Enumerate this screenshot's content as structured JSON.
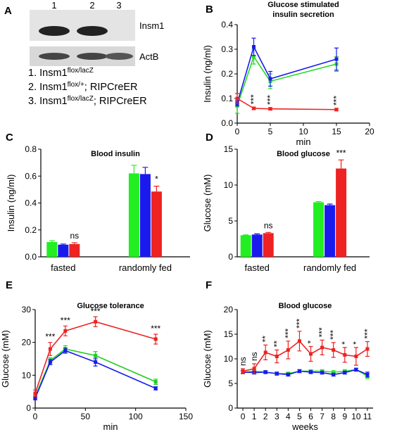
{
  "blot": {
    "label": "A",
    "lanes": [
      "1",
      "2",
      "3"
    ],
    "lane_colors": [
      "#22cc22",
      "#2222dd",
      "#ee2222"
    ],
    "bands": [
      "Insm1",
      "ActB"
    ]
  },
  "legend": [
    {
      "text": "1. Insm1",
      "sup": "flox/lacZ",
      "color": "#22cc22"
    },
    {
      "text": "2. Insm1",
      "sup": "flox/+",
      "rest": "; RIPCreER",
      "color": "#2222dd"
    },
    {
      "text": "3. Insm1",
      "sup": "flox/lacZ",
      "rest": "; RIPCreER",
      "color": "#ee2222"
    }
  ],
  "chart_data": [
    {
      "type": "line",
      "label": "B",
      "title": [
        "Glucose stimulated",
        "insulin secretion"
      ],
      "xlabel": "min",
      "ylabel": "Insulin (ng/ml)",
      "x": [
        0,
        2.5,
        5,
        15
      ],
      "xlim": [
        0,
        20
      ],
      "xticks": [
        0,
        5,
        10,
        15,
        20
      ],
      "ylim": [
        0,
        0.4
      ],
      "yticks": [
        {
          "value": 0,
          "label": "0.0"
        },
        {
          "value": 0.1,
          "label": "0.1"
        },
        {
          "value": 0.2,
          "label": "0.2"
        },
        {
          "value": 0.3,
          "label": "0.3"
        },
        {
          "value": 0.4,
          "label": "0.4"
        }
      ],
      "annotation_orientation": "vertical",
      "series": [
        {
          "color": "#22dd22",
          "values": [
            0.07,
            0.27,
            0.17,
            0.24
          ],
          "errors": [
            0.03,
            0.03,
            0.03,
            0.03
          ]
        },
        {
          "color": "#1a1aee",
          "values": [
            0.08,
            0.31,
            0.18,
            0.26
          ],
          "errors": [
            0.01,
            0.035,
            0.03,
            0.045
          ]
        },
        {
          "color": "#ee2222",
          "values": [
            0.1,
            0.06,
            0.058,
            0.055
          ],
          "errors": [
            0.02,
            0.005,
            0.005,
            0.005
          ],
          "annotations": [
            null,
            "***",
            "***",
            "***"
          ]
        }
      ]
    },
    {
      "type": "bar",
      "label": "C",
      "title": "Blood insulin",
      "ylabel": "Insulin (ng/ml)",
      "categories": [
        "fasted",
        "randomly fed"
      ],
      "ylim": [
        0,
        0.8
      ],
      "yticks": [
        {
          "value": 0,
          "label": "0.0"
        },
        {
          "value": 0.2,
          "label": "0.2"
        },
        {
          "value": 0.4,
          "label": "0.4"
        },
        {
          "value": 0.6,
          "label": "0.6"
        },
        {
          "value": 0.8,
          "label": "0.8"
        }
      ],
      "series": [
        {
          "color": "#22ee22",
          "values": [
            0.11,
            0.62
          ],
          "errors": [
            0.01,
            0.06
          ]
        },
        {
          "color": "#1a1aee",
          "values": [
            0.09,
            0.615
          ],
          "errors": [
            0.005,
            0.05
          ]
        },
        {
          "color": "#ee2222",
          "values": [
            0.095,
            0.485
          ],
          "errors": [
            0.01,
            0.04
          ],
          "annotations": [
            "ns",
            "*"
          ]
        }
      ]
    },
    {
      "type": "bar",
      "label": "D",
      "title": "Blood glucose",
      "ylabel": "Glucose (mM)",
      "categories": [
        "fasted",
        "randomly fed"
      ],
      "ylim": [
        0,
        15
      ],
      "yticks": [
        0,
        5,
        10,
        15
      ],
      "series": [
        {
          "color": "#22ee22",
          "values": [
            3.0,
            7.6
          ],
          "errors": [
            0.05,
            0.1
          ]
        },
        {
          "color": "#1a1aee",
          "values": [
            3.1,
            7.2
          ],
          "errors": [
            0.1,
            0.15
          ]
        },
        {
          "color": "#ee2222",
          "values": [
            3.3,
            12.3
          ],
          "errors": [
            0.1,
            1.2
          ],
          "annotations": [
            "ns",
            "***"
          ]
        }
      ]
    },
    {
      "type": "line",
      "label": "E",
      "title": "Glucose tolerance",
      "xlabel": "min",
      "ylabel": "Glucose (mM)",
      "x": [
        0,
        15,
        30,
        60,
        120
      ],
      "xlim": [
        0,
        150
      ],
      "xticks": [
        0,
        50,
        100,
        150
      ],
      "ylim": [
        0,
        30
      ],
      "yticks": [
        0,
        10,
        20,
        30
      ],
      "annotation_orientation": "horizontal",
      "series": [
        {
          "color": "#22cc22",
          "values": [
            3.5,
            14.5,
            18,
            16,
            8
          ],
          "errors": [
            0.5,
            0.8,
            1,
            1.2,
            0.8
          ]
        },
        {
          "color": "#1a1aee",
          "values": [
            3,
            14,
            17.5,
            14,
            6
          ],
          "errors": [
            0.5,
            0.8,
            0.8,
            1.2,
            0.5
          ]
        },
        {
          "color": "#ee2222",
          "values": [
            4.5,
            18,
            23.5,
            26.3,
            21
          ],
          "errors": [
            1,
            2,
            1.5,
            1.5,
            1.5
          ],
          "annotations": [
            null,
            "***",
            "***",
            "***",
            "***"
          ]
        }
      ]
    },
    {
      "type": "line",
      "label": "F",
      "title": "Blood glucose",
      "xlabel": "weeks",
      "ylabel": "Glucose (mM)",
      "x": [
        0,
        1,
        2,
        3,
        4,
        5,
        6,
        7,
        8,
        9,
        10,
        11
      ],
      "xlim": [
        -0.5,
        11.5
      ],
      "xticks": [
        0,
        1,
        2,
        3,
        4,
        5,
        6,
        7,
        8,
        9,
        10,
        11
      ],
      "ylim": [
        0,
        20
      ],
      "yticks": [
        0,
        5,
        10,
        15,
        20
      ],
      "annotation_orientation": "vertical",
      "series": [
        {
          "color": "#22ee22",
          "values": [
            7.3,
            7.5,
            7.3,
            7,
            7,
            7.5,
            7.5,
            7.5,
            7.3,
            7.5,
            7.8,
            6.5
          ],
          "errors": [
            0.3,
            0.3,
            0.3,
            0.3,
            0.3,
            0.3,
            0.3,
            0.3,
            0.3,
            0.3,
            0.3,
            0.5
          ]
        },
        {
          "color": "#1a1aee",
          "values": [
            7.3,
            7.2,
            7.3,
            7,
            6.8,
            7.5,
            7.3,
            7.2,
            6.8,
            7.2,
            7.8,
            6.8
          ],
          "errors": [
            0.3,
            0.3,
            0.3,
            0.3,
            0.3,
            0.3,
            0.3,
            0.3,
            0.3,
            0.3,
            0.3,
            0.5
          ]
        },
        {
          "color": "#ee2222",
          "values": [
            7.5,
            8,
            11.3,
            10.5,
            11.8,
            13.6,
            11,
            12.3,
            11.8,
            10.8,
            10.5,
            12
          ],
          "errors": [
            0.5,
            1,
            1.5,
            1.3,
            1.8,
            2,
            1.5,
            1.5,
            1.5,
            1.5,
            1.8,
            1.5
          ],
          "annotations": [
            "ns",
            "ns",
            "**",
            "**",
            "***",
            "***",
            "*",
            "***",
            "***",
            "*",
            "*",
            "***"
          ]
        }
      ]
    }
  ]
}
